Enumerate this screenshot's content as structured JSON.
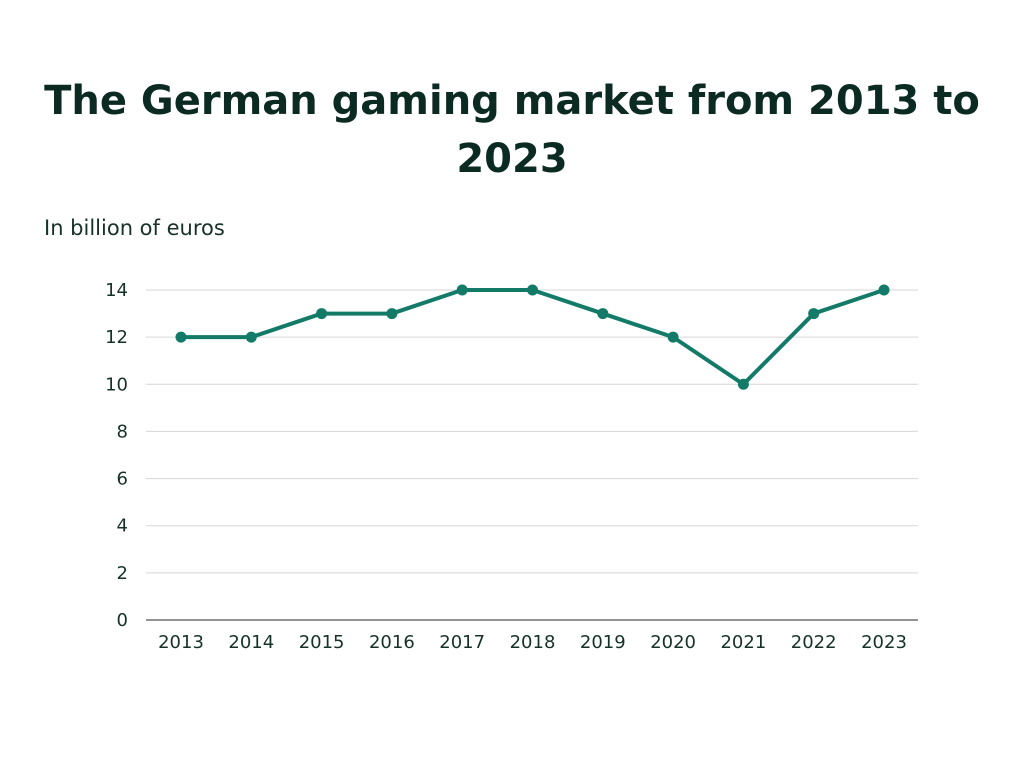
{
  "chart_data": {
    "type": "line",
    "title": "The German gaming market from 2013 to 2023",
    "ylabel": "In billion of euros",
    "xlabel": "",
    "categories": [
      "2013",
      "2014",
      "2015",
      "2016",
      "2017",
      "2018",
      "2019",
      "2020",
      "2021",
      "2022",
      "2023"
    ],
    "series": [
      {
        "name": "German gaming market",
        "values": [
          12,
          12,
          13,
          13,
          14,
          14,
          13,
          12,
          10,
          13,
          14
        ]
      }
    ],
    "ylim": [
      0,
      14
    ],
    "yticks": [
      0,
      2,
      4,
      6,
      8,
      10,
      12,
      14
    ],
    "grid": true,
    "legend": "none"
  },
  "colors": {
    "line": "#137a68",
    "grid": "#d6d6d6",
    "axis": "#555555",
    "title": "#0b2a22",
    "text": "#163228"
  }
}
